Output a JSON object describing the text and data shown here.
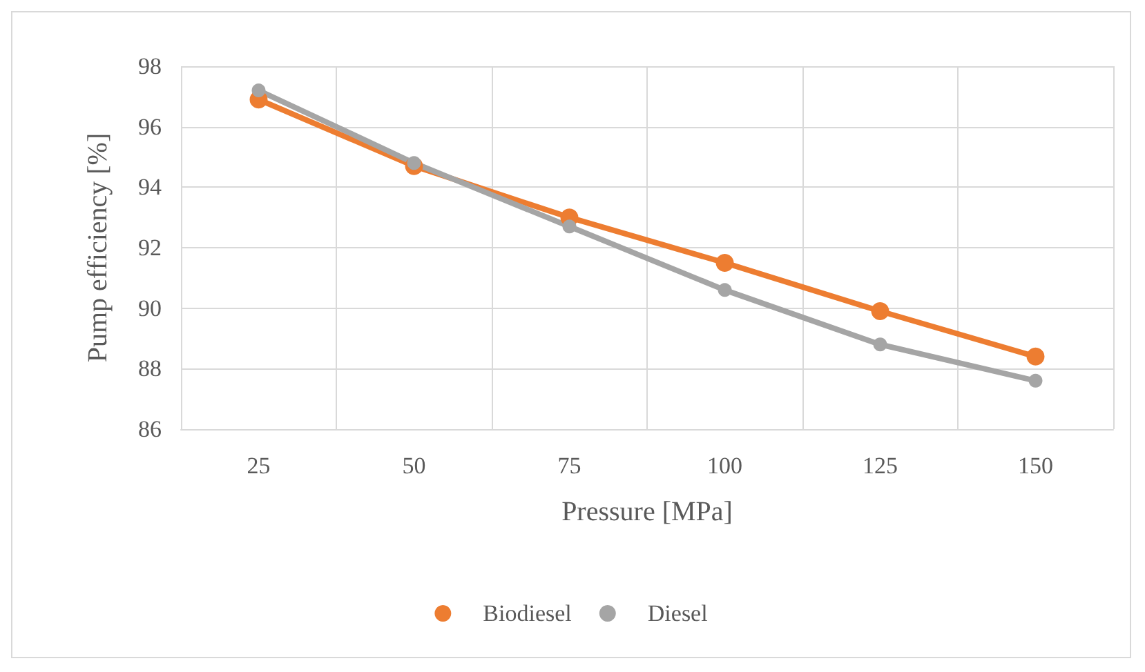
{
  "chart_data": {
    "type": "line",
    "xlabel": "Pressure [MPa]",
    "ylabel": "Pump efficiency [%]",
    "categories": [
      "25",
      "50",
      "75",
      "100",
      "125",
      "150"
    ],
    "series": [
      {
        "name": "Biodiesel",
        "color": "#ed7d31",
        "values": [
          96.9,
          94.7,
          93.0,
          91.5,
          89.9,
          88.4
        ]
      },
      {
        "name": "Diesel",
        "color": "#a5a5a5",
        "values": [
          97.2,
          94.8,
          92.7,
          90.6,
          88.8,
          87.6
        ]
      }
    ],
    "ylim": [
      86,
      98
    ],
    "yticks": [
      86,
      88,
      90,
      92,
      94,
      96,
      98
    ],
    "grid": true,
    "legend": "bottom",
    "marker": "circle",
    "line_style": "solid"
  }
}
